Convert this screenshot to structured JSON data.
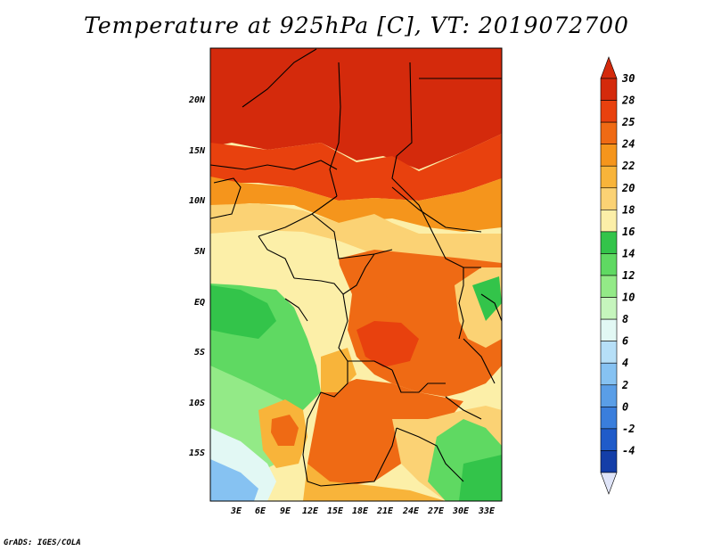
{
  "title": "Temperature at 925hPa [C], VT: 2019072700",
  "credit": "GrADS: IGES/COLA",
  "lat_ticks": [
    "20N",
    "15N",
    "10N",
    "5N",
    "EQ",
    "5S",
    "10S",
    "15S"
  ],
  "lon_ticks": [
    "3E",
    "6E",
    "9E",
    "12E",
    "15E",
    "18E",
    "21E",
    "24E",
    "27E",
    "30E",
    "33E"
  ],
  "colorbar": {
    "labels": [
      "30",
      "28",
      "25",
      "24",
      "22",
      "20",
      "18",
      "16",
      "14",
      "12",
      "10",
      "8",
      "6",
      "4",
      "2",
      "0",
      "-2",
      "-4"
    ],
    "colors": [
      "#d42a0c",
      "#e8410e",
      "#ef6a14",
      "#f5951c",
      "#f8b43a",
      "#fbd274",
      "#fcefa8",
      "#33c44a",
      "#5fd962",
      "#93ea87",
      "#c6f5bd",
      "#e2f8f4",
      "#b6dff7",
      "#86c2f2",
      "#5a9ee7",
      "#3a7edc",
      "#1f5bc9",
      "#143ea8",
      "#0f2477"
    ],
    "top_arrow_color": "#d42a0c",
    "bottom_arrow_color": "#dfe4f8"
  }
}
